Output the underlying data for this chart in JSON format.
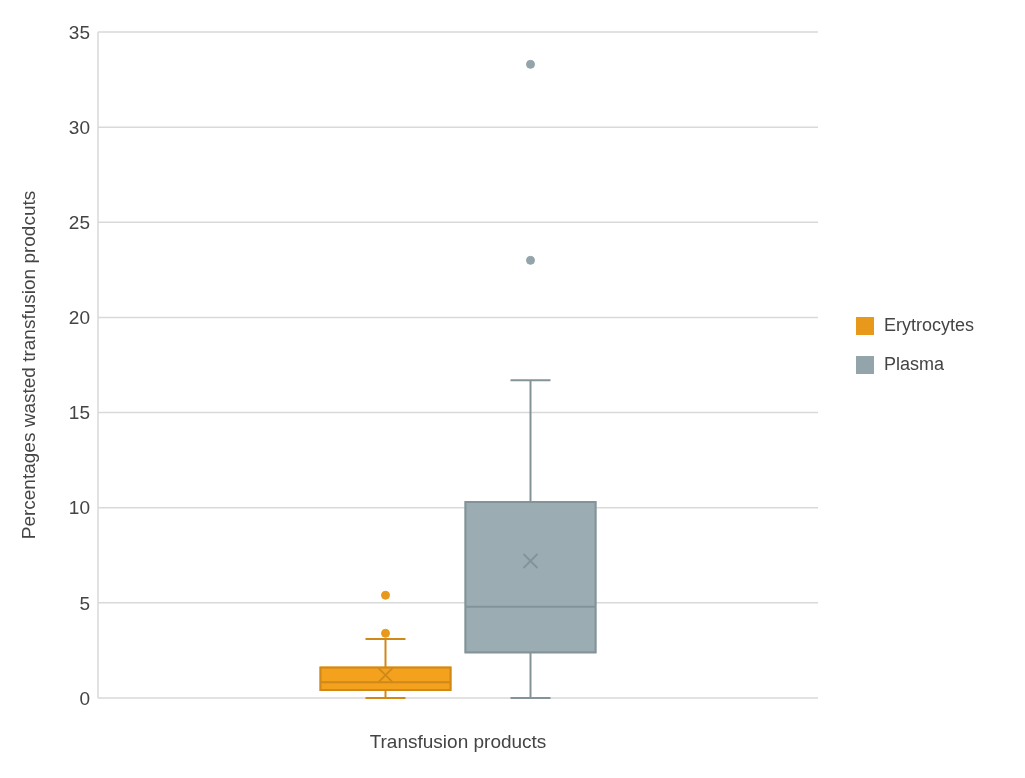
{
  "chart_data": {
    "type": "box",
    "xlabel": "Transfusion products",
    "ylabel": "Percentages wasted transfusion prodcuts",
    "categories": [
      null
    ],
    "series": [
      {
        "name": "Erytrocytes",
        "color": "#f4a11d",
        "boxes": [
          {
            "low": 0,
            "q1": 0.42,
            "median": 0.83,
            "q3": 1.6,
            "high": 3.1,
            "mean": 1.2,
            "outliers": [
              3.4,
              5.4
            ]
          }
        ]
      },
      {
        "name": "Plasma",
        "color": "#9badb3",
        "boxes": [
          {
            "low": 0,
            "q1": 2.4,
            "median": 4.8,
            "q3": 10.3,
            "high": 16.7,
            "mean": 7.2,
            "outliers": [
              23,
              33.3
            ]
          }
        ]
      }
    ],
    "ylim": [
      0,
      35
    ],
    "yticks": [
      0,
      5,
      10,
      15,
      20,
      25,
      30,
      35
    ],
    "grid": "y",
    "legend": "right",
    "marker": "circle"
  }
}
